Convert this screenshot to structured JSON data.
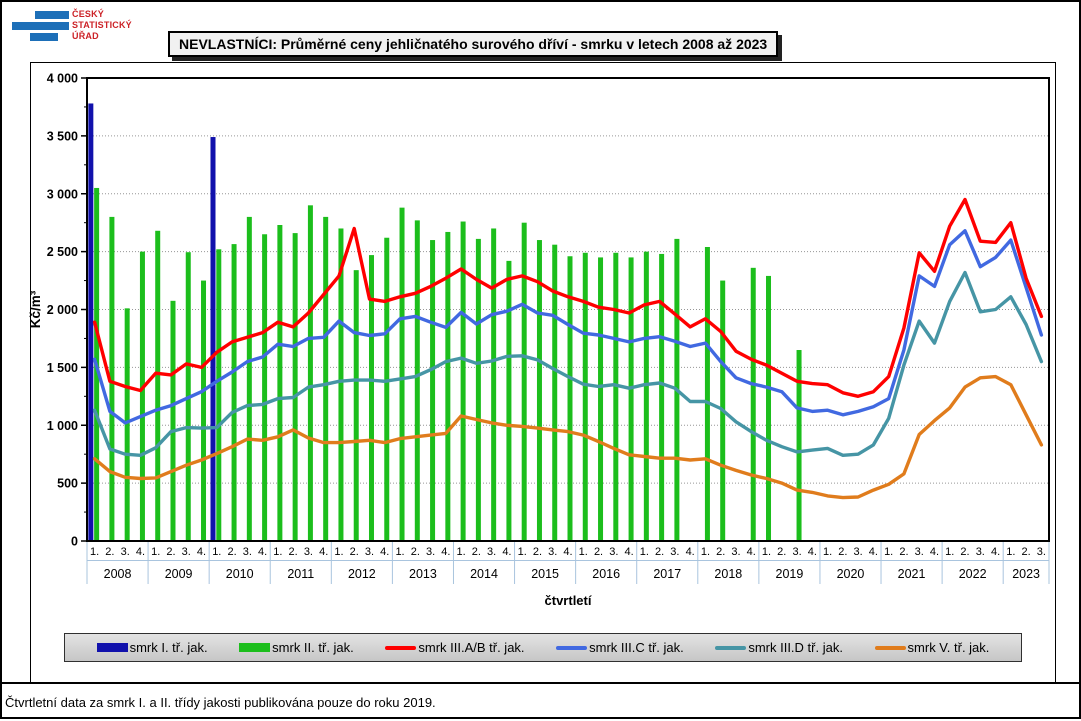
{
  "header": {
    "logo": {
      "lines": [
        "ČESKÝ",
        "STATISTICKÝ",
        "ÚŘAD"
      ]
    },
    "title": "NEVLASTNÍCI: Průměrné ceny jehličnatého surového dříví - smrku v letech 2008 až 2023"
  },
  "note": "Čtvrtletní data za smrk I. a II. třídy jakosti publikována pouze do roku 2019.",
  "colors": {
    "logo_blue": "#1D6FB8",
    "logo_red": "#CC2227",
    "axis_furniture_blue": "#A9C4DE",
    "gridline_gray": "#969696",
    "legend_bg": "#d5d5d5",
    "smrk_I": "#1111AC",
    "smrk_II": "#1CBE1C",
    "smrk_IIIAB": "#FF0000",
    "smrk_IIIC": "#4169E1",
    "smrk_IIID": "#4695A5",
    "smrk_V": "#E07C1C"
  },
  "chart_data": {
    "type": "bar",
    "title": "NEVLASTNÍCI: Průměrné ceny jehličnatého surového dříví - smrku v letech 2008 až 2023",
    "xlabel": "čtvrtletí",
    "ylabel": "Kč/m³",
    "ylim": [
      0,
      4000
    ],
    "ytick_step": 500,
    "ytick_labels": [
      "0",
      "500",
      "1 000",
      "1 500",
      "2 000",
      "2 500",
      "3 000",
      "3 500",
      "4 000"
    ],
    "grid": "dotted horizontal at each 500",
    "legend_position": "bottom strip",
    "quarter_labels": [
      "1.",
      "2.",
      "3.",
      "4."
    ],
    "years": [
      {
        "label": "2008",
        "quarters": 4
      },
      {
        "label": "2009",
        "quarters": 4
      },
      {
        "label": "2010",
        "quarters": 4
      },
      {
        "label": "2011",
        "quarters": 4
      },
      {
        "label": "2012",
        "quarters": 4
      },
      {
        "label": "2013",
        "quarters": 4
      },
      {
        "label": "2014",
        "quarters": 4
      },
      {
        "label": "2015",
        "quarters": 4
      },
      {
        "label": "2016",
        "quarters": 4
      },
      {
        "label": "2017",
        "quarters": 4
      },
      {
        "label": "2018",
        "quarters": 4
      },
      {
        "label": "2019",
        "quarters": 4
      },
      {
        "label": "2020",
        "quarters": 4
      },
      {
        "label": "2021",
        "quarters": 4
      },
      {
        "label": "2022",
        "quarters": 4
      },
      {
        "label": "2023",
        "quarters": 3
      }
    ],
    "series": [
      {
        "name": "smrk I. tř. jak.",
        "type": "bar",
        "color": "#1111AC",
        "values": [
          3780,
          null,
          null,
          null,
          null,
          null,
          null,
          null,
          3490,
          null,
          null,
          null,
          null,
          null,
          null,
          null,
          null,
          null,
          null,
          null,
          null,
          null,
          null,
          null,
          null,
          null,
          null,
          null,
          null,
          null,
          null,
          null,
          null,
          null,
          null,
          null,
          null,
          null,
          null,
          null,
          null,
          null,
          null,
          null,
          null,
          null,
          null,
          null,
          null,
          null,
          null,
          null,
          null,
          null,
          null,
          null,
          null,
          null,
          null,
          null,
          null,
          null,
          null
        ]
      },
      {
        "name": "smrk II. tř. jak.",
        "type": "bar",
        "color": "#1CBE1C",
        "values": [
          3050,
          2800,
          2010,
          2500,
          2680,
          2075,
          2495,
          2250,
          2520,
          2565,
          2800,
          2650,
          2730,
          2660,
          2900,
          2800,
          2700,
          2340,
          2470,
          2620,
          2880,
          2770,
          2600,
          2670,
          2760,
          2610,
          2700,
          2420,
          2750,
          2600,
          2560,
          2460,
          2490,
          2450,
          2490,
          2450,
          2500,
          2480,
          2610,
          null,
          2540,
          2250,
          null,
          2360,
          2290,
          null,
          1650,
          null,
          null,
          null,
          null,
          null,
          null,
          null,
          null,
          null,
          null,
          null,
          null,
          null,
          null,
          null,
          null
        ]
      },
      {
        "name": "smrk III.A/B tř. jak.",
        "type": "line",
        "color": "#FF0000",
        "values": [
          1890,
          1380,
          1335,
          1300,
          1450,
          1435,
          1530,
          1500,
          1630,
          1720,
          1760,
          1800,
          1890,
          1850,
          1970,
          2130,
          2290,
          2700,
          2090,
          2070,
          2110,
          2140,
          2200,
          2270,
          2350,
          2260,
          2185,
          2260,
          2290,
          2240,
          2160,
          2110,
          2070,
          2020,
          2000,
          1970,
          2040,
          2070,
          1960,
          1850,
          1920,
          1810,
          1640,
          1570,
          1520,
          1450,
          1380,
          1360,
          1350,
          1280,
          1250,
          1290,
          1420,
          1840,
          2490,
          2330,
          2720,
          2950,
          2590,
          2580,
          2750,
          2270,
          1940
        ]
      },
      {
        "name": "smrk III.C tř. jak.",
        "type": "line",
        "color": "#4169E1",
        "values": [
          1570,
          1120,
          1020,
          1075,
          1130,
          1170,
          1230,
          1290,
          1380,
          1460,
          1550,
          1590,
          1700,
          1680,
          1750,
          1760,
          1900,
          1800,
          1775,
          1790,
          1920,
          1940,
          1890,
          1845,
          1975,
          1875,
          1955,
          1985,
          2045,
          1970,
          1950,
          1870,
          1795,
          1780,
          1750,
          1720,
          1750,
          1765,
          1725,
          1680,
          1710,
          1550,
          1410,
          1360,
          1330,
          1290,
          1150,
          1120,
          1130,
          1090,
          1120,
          1160,
          1230,
          1650,
          2290,
          2200,
          2560,
          2680,
          2370,
          2450,
          2600,
          2190,
          1780
        ]
      },
      {
        "name": "smrk III.D tř. jak.",
        "type": "line",
        "color": "#4695A5",
        "values": [
          1130,
          795,
          750,
          740,
          805,
          945,
          980,
          975,
          980,
          1110,
          1170,
          1180,
          1230,
          1240,
          1330,
          1350,
          1380,
          1390,
          1390,
          1380,
          1400,
          1420,
          1480,
          1550,
          1580,
          1535,
          1555,
          1595,
          1600,
          1565,
          1490,
          1420,
          1355,
          1335,
          1350,
          1320,
          1350,
          1365,
          1320,
          1205,
          1205,
          1145,
          1030,
          945,
          870,
          815,
          770,
          785,
          800,
          740,
          750,
          830,
          1060,
          1520,
          1900,
          1710,
          2070,
          2320,
          1980,
          2000,
          2110,
          1870,
          1550
        ]
      },
      {
        "name": "smrk V. tř. jak.",
        "type": "line",
        "color": "#E07C1C",
        "values": [
          710,
          600,
          550,
          540,
          545,
          600,
          655,
          700,
          755,
          815,
          880,
          870,
          900,
          960,
          890,
          850,
          850,
          860,
          870,
          850,
          885,
          900,
          915,
          930,
          1080,
          1050,
          1020,
          1000,
          990,
          975,
          960,
          945,
          915,
          860,
          800,
          745,
          730,
          715,
          715,
          700,
          710,
          655,
          610,
          570,
          540,
          500,
          440,
          420,
          390,
          375,
          380,
          440,
          490,
          580,
          920,
          1040,
          1150,
          1330,
          1410,
          1420,
          1350,
          1090,
          830
        ]
      }
    ]
  }
}
